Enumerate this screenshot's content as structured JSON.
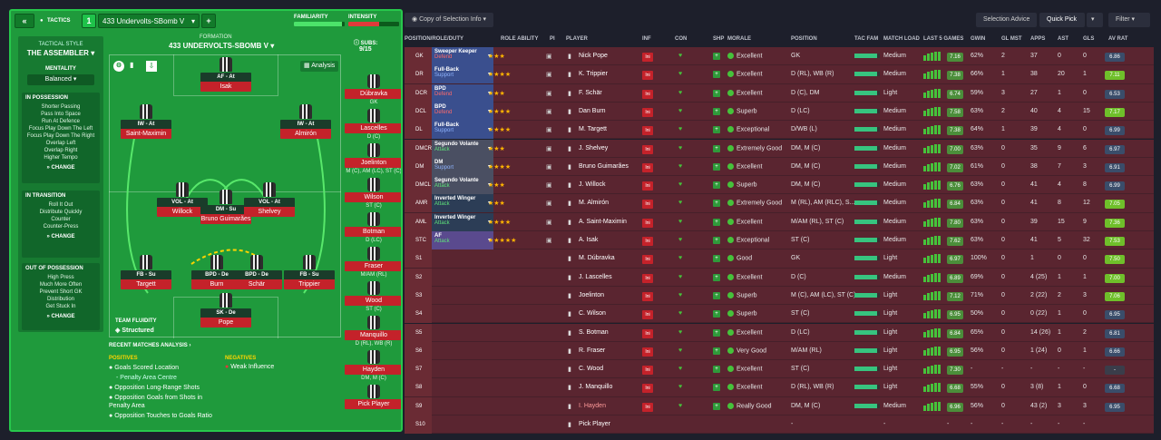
{
  "left": {
    "tactics_label": "TACTICS",
    "tactic_number": "1",
    "tactic_name": "433 Undervolts-SBomb V",
    "familiarity_label": "FAMILIARITY",
    "intensity_label": "INTENSITY",
    "familiarity": 0.95,
    "intensity": 0.6,
    "tactical_style_label": "TACTICAL STYLE",
    "tactical_style": "THE ASSEMBLER",
    "mentality_label": "MENTALITY",
    "mentality": "Balanced",
    "in_possession": {
      "title": "IN POSSESSION",
      "items": [
        "Shorter Passing",
        "Pass Into Space",
        "Run At Defence",
        "Focus Play Down The Left",
        "Focus Play Down The Right",
        "Overlap Left",
        "Overlap Right",
        "Higher Tempo"
      ],
      "change": "CHANGE"
    },
    "in_transition": {
      "title": "IN TRANSITION",
      "items": [
        "Roll It Out",
        "Distribute Quickly",
        "Counter",
        "Counter-Press"
      ],
      "change": "CHANGE"
    },
    "out_of_possession": {
      "title": "OUT OF POSSESSION",
      "items": [
        "High Press",
        "Much More Often",
        "Prevent Short GK",
        "Distribution",
        "Get Stuck In"
      ],
      "change": "CHANGE"
    },
    "formation_label": "FORMATION",
    "formation": "433 UNDERVOLTS-SBOMB V",
    "subs_label": "SUBS:",
    "subs_count": "9/15",
    "analysis_btn": "Analysis",
    "team_fluidity_label": "TEAM FLUIDITY",
    "team_fluidity": "Structured",
    "pitch": [
      {
        "role": "AF - At",
        "name": "Isak"
      },
      {
        "role": "IW - At",
        "name": "Saint-Maximin"
      },
      {
        "role": "IW - At",
        "name": "Almirón"
      },
      {
        "role": "VOL - At",
        "name": "Willock"
      },
      {
        "role": "DM - Su",
        "name": "Bruno Guimarães"
      },
      {
        "role": "VOL - At",
        "name": "Shelvey"
      },
      {
        "role": "FB - Su",
        "name": "Targett"
      },
      {
        "role": "BPD - De",
        "name": "Burn"
      },
      {
        "role": "BPD - De",
        "name": "Schär"
      },
      {
        "role": "FB - Su",
        "name": "Trippier"
      },
      {
        "role": "SK - De",
        "name": "Pope"
      }
    ],
    "subs": [
      {
        "name": "Dúbravka",
        "pos": "GK"
      },
      {
        "name": "Lascelles",
        "pos": "D (C)"
      },
      {
        "name": "Joelinton",
        "pos": "M (C), AM (LC), ST (C)"
      },
      {
        "name": "Wilson",
        "pos": "ST (C)"
      },
      {
        "name": "Botman",
        "pos": "D (LC)"
      },
      {
        "name": "Fraser",
        "pos": "M/AM (RL)"
      },
      {
        "name": "Wood",
        "pos": "ST (C)"
      },
      {
        "name": "Manquillo",
        "pos": "D (RL), WB (R)"
      },
      {
        "name": "Hayden",
        "pos": "DM, M (C)"
      },
      {
        "name": "Pick Player",
        "pos": ""
      }
    ],
    "recent_label": "RECENT MATCHES ANALYSIS",
    "positives_label": "POSITIVES",
    "negatives_label": "NEGATIVES",
    "positives": [
      "Goals Scored Location",
      "- Penalty Area Centre",
      "Opposition Long-Range Shots",
      "Opposition Goals from Shots in Penalty Area",
      "Opposition Touches to Goals Ratio"
    ],
    "negatives": [
      "Weak Influence"
    ]
  },
  "right": {
    "copy_btn": "Copy of Selection Info",
    "selection_advice": "Selection Advice",
    "quick_pick": "Quick Pick",
    "filter": "Filter",
    "headers": [
      "POSITION/ROLE/DUTY",
      "ROLE ABILITY",
      "PI",
      "PLAYER",
      "INF",
      "CON",
      "SHP",
      "MORALE",
      "POSITION",
      "TAC FAM",
      "MATCH LOAD",
      "LAST 5 GAMES",
      "GWIN",
      "GL MST",
      "APPS",
      "AST",
      "GLS",
      "AV RAT"
    ],
    "rows": [
      {
        "pos": "GK",
        "role": "Sweeper Keeper",
        "duty": "Defend",
        "stars": "★★★",
        "player": "Nick Pope",
        "morale": "Excellent",
        "position": "GK",
        "load": "Medium",
        "last5": "7.16",
        "gwin": "62%",
        "glmst": "2",
        "apps": "37",
        "ast": "0",
        "gls": "0",
        "avrat": "6.86"
      },
      {
        "pos": "DR",
        "role": "Full-Back",
        "duty": "Support",
        "stars": "★★★★",
        "player": "K. Trippier",
        "morale": "Excellent",
        "position": "D (RL), WB (R)",
        "load": "Medium",
        "last5": "7.38",
        "gwin": "66%",
        "glmst": "1",
        "apps": "38",
        "ast": "20",
        "gls": "1",
        "avrat": "7.11"
      },
      {
        "pos": "DCR",
        "role": "BPD",
        "duty": "Defend",
        "stars": "★★★",
        "player": "F. Schär",
        "morale": "Excellent",
        "position": "D (C), DM",
        "load": "Light",
        "last5": "6.74",
        "gwin": "59%",
        "glmst": "3",
        "apps": "27",
        "ast": "1",
        "gls": "0",
        "avrat": "6.53"
      },
      {
        "pos": "DCL",
        "role": "BPD",
        "duty": "Defend",
        "stars": "★★★★",
        "player": "Dan Burn",
        "morale": "Superb",
        "position": "D (LC)",
        "load": "Medium",
        "last5": "7.58",
        "gwin": "63%",
        "glmst": "2",
        "apps": "40",
        "ast": "4",
        "gls": "15",
        "avrat": "7.17"
      },
      {
        "pos": "DL",
        "role": "Full-Back",
        "duty": "Support",
        "stars": "★★★★",
        "player": "M. Targett",
        "morale": "Exceptional",
        "position": "D/WB (L)",
        "load": "Medium",
        "last5": "7.38",
        "gwin": "64%",
        "glmst": "1",
        "apps": "39",
        "ast": "4",
        "gls": "0",
        "avrat": "6.99"
      },
      {
        "pos": "DMCR",
        "role": "Segundo Volante",
        "duty": "Attack",
        "stars": "★★★",
        "player": "J. Shelvey",
        "morale": "Extremely Good",
        "position": "DM, M (C)",
        "load": "Medium",
        "last5": "7.00",
        "gwin": "63%",
        "glmst": "0",
        "apps": "35",
        "ast": "9",
        "gls": "6",
        "avrat": "6.97"
      },
      {
        "pos": "DM",
        "role": "DM",
        "duty": "Support",
        "stars": "★★★★",
        "player": "Bruno Guimarães",
        "morale": "Excellent",
        "position": "DM, M (C)",
        "load": "Medium",
        "last5": "7.02",
        "gwin": "61%",
        "glmst": "0",
        "apps": "38",
        "ast": "7",
        "gls": "3",
        "avrat": "6.91"
      },
      {
        "pos": "DMCL",
        "role": "Segundo Volante",
        "duty": "Attack",
        "stars": "★★★",
        "player": "J. Willock",
        "morale": "Superb",
        "position": "DM, M (C)",
        "load": "Medium",
        "last5": "6.76",
        "gwin": "63%",
        "glmst": "0",
        "apps": "41",
        "ast": "4",
        "gls": "8",
        "avrat": "6.99"
      },
      {
        "pos": "AMR",
        "role": "Inverted Winger",
        "duty": "Attack",
        "stars": "★★★",
        "player": "M. Almirón",
        "morale": "Extremely Good",
        "position": "M (RL), AM (RLC), S...",
        "load": "Medium",
        "last5": "6.84",
        "gwin": "63%",
        "glmst": "0",
        "apps": "41",
        "ast": "8",
        "gls": "12",
        "avrat": "7.05"
      },
      {
        "pos": "AML",
        "role": "Inverted Winger",
        "duty": "Attack",
        "stars": "★★★★",
        "player": "A. Saint-Maximin",
        "morale": "Excellent",
        "position": "M/AM (RL), ST (C)",
        "load": "Medium",
        "last5": "7.80",
        "gwin": "63%",
        "glmst": "0",
        "apps": "39",
        "ast": "15",
        "gls": "9",
        "avrat": "7.36"
      },
      {
        "pos": "STC",
        "role": "AF",
        "duty": "Attack",
        "stars": "★★★★★",
        "player": "A. Isak",
        "morale": "Exceptional",
        "position": "ST (C)",
        "load": "Medium",
        "last5": "7.62",
        "gwin": "63%",
        "glmst": "0",
        "apps": "41",
        "ast": "5",
        "gls": "32",
        "avrat": "7.53"
      },
      {
        "pos": "S1",
        "role": "",
        "duty": "",
        "stars": "",
        "player": "M. Dúbravka",
        "morale": "Good",
        "position": "GK",
        "load": "Light",
        "last5": "6.97",
        "gwin": "100%",
        "glmst": "0",
        "apps": "1",
        "ast": "0",
        "gls": "0",
        "avrat": "7.50"
      },
      {
        "pos": "S2",
        "role": "",
        "duty": "",
        "stars": "",
        "player": "J. Lascelles",
        "morale": "Excellent",
        "position": "D (C)",
        "load": "Medium",
        "last5": "6.89",
        "gwin": "69%",
        "glmst": "0",
        "apps": "4 (25)",
        "ast": "1",
        "gls": "1",
        "avrat": "7.00"
      },
      {
        "pos": "S3",
        "role": "",
        "duty": "",
        "stars": "",
        "player": "Joelinton",
        "morale": "Superb",
        "position": "M (C), AM (LC), ST (C)",
        "load": "Light",
        "last5": "7.12",
        "gwin": "71%",
        "glmst": "0",
        "apps": "2 (22)",
        "ast": "2",
        "gls": "3",
        "avrat": "7.06"
      },
      {
        "pos": "S4",
        "role": "",
        "duty": "",
        "stars": "",
        "player": "C. Wilson",
        "morale": "Superb",
        "position": "ST (C)",
        "load": "Light",
        "last5": "6.95",
        "gwin": "50%",
        "glmst": "0",
        "apps": "0 (22)",
        "ast": "1",
        "gls": "0",
        "avrat": "6.95"
      },
      {
        "pos": "S5",
        "role": "",
        "duty": "",
        "stars": "",
        "player": "S. Botman",
        "morale": "Excellent",
        "position": "D (LC)",
        "load": "Light",
        "last5": "6.84",
        "gwin": "65%",
        "glmst": "0",
        "apps": "14 (26)",
        "ast": "1",
        "gls": "2",
        "avrat": "6.81"
      },
      {
        "pos": "S6",
        "role": "",
        "duty": "",
        "stars": "",
        "player": "R. Fraser",
        "morale": "Very Good",
        "position": "M/AM (RL)",
        "load": "Light",
        "last5": "6.95",
        "gwin": "56%",
        "glmst": "0",
        "apps": "1 (24)",
        "ast": "0",
        "gls": "1",
        "avrat": "6.66"
      },
      {
        "pos": "S7",
        "role": "",
        "duty": "",
        "stars": "",
        "player": "C. Wood",
        "morale": "Excellent",
        "position": "ST (C)",
        "load": "Light",
        "last5": "7.30",
        "gwin": "-",
        "glmst": "-",
        "apps": "-",
        "ast": "-",
        "gls": "-",
        "avrat": "-"
      },
      {
        "pos": "S8",
        "role": "",
        "duty": "",
        "stars": "",
        "player": "J. Manquillo",
        "morale": "Excellent",
        "position": "D (RL), WB (R)",
        "load": "Light",
        "last5": "6.68",
        "gwin": "55%",
        "glmst": "0",
        "apps": "3 (8)",
        "ast": "1",
        "gls": "0",
        "avrat": "6.68"
      },
      {
        "pos": "S9",
        "role": "",
        "duty": "",
        "stars": "",
        "player": "I. Hayden",
        "morale": "Really Good",
        "position": "DM, M (C)",
        "load": "Medium",
        "last5": "6.96",
        "gwin": "56%",
        "glmst": "0",
        "apps": "43 (2)",
        "ast": "3",
        "gls": "3",
        "avrat": "6.95"
      },
      {
        "pos": "S10",
        "role": "",
        "duty": "",
        "stars": "",
        "player": "Pick Player",
        "morale": "",
        "position": "-",
        "load": "-",
        "last5": "-",
        "gwin": "-",
        "glmst": "-",
        "apps": "-",
        "ast": "-",
        "gls": "-",
        "avrat": ""
      }
    ]
  }
}
